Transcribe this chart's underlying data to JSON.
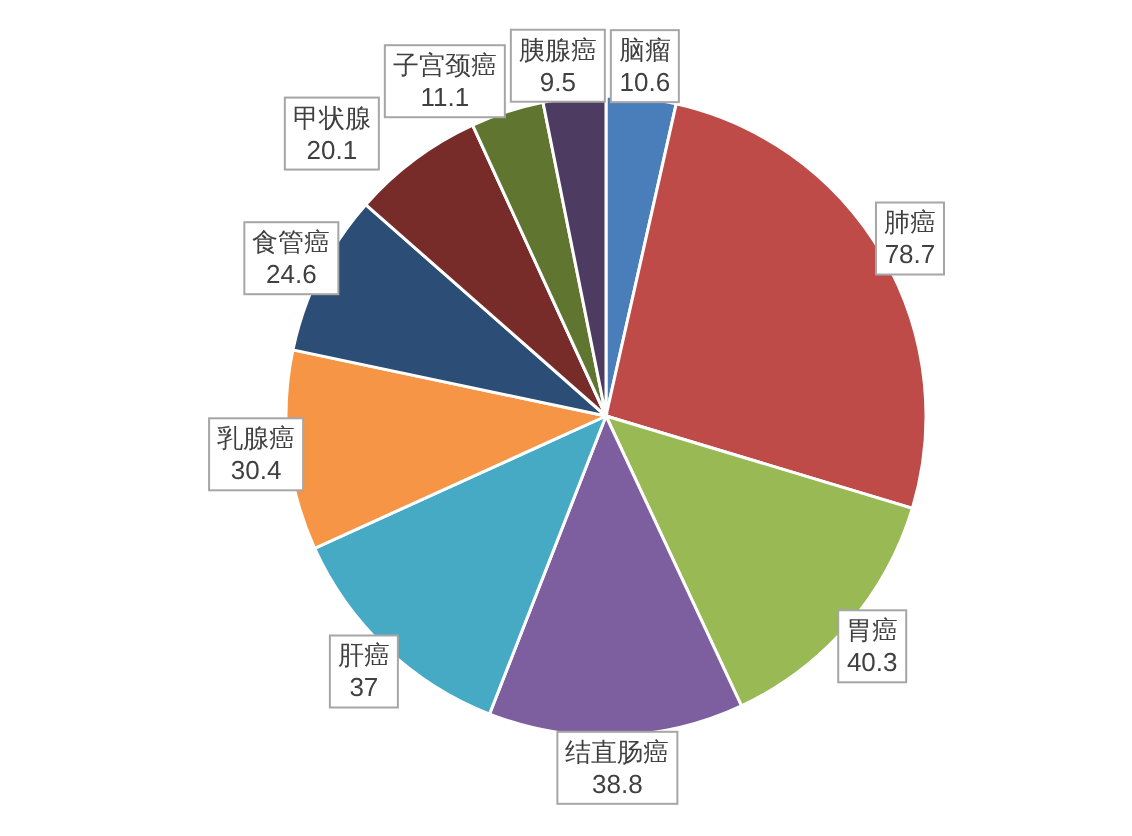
{
  "chart_data": {
    "type": "pie",
    "data_labels": true,
    "categories": [
      "脑瘤",
      "肺癌",
      "胃癌",
      "结直肠癌",
      "肝癌",
      "乳腺癌",
      "食管癌",
      "甲状腺",
      "子宫颈癌",
      "胰腺癌"
    ],
    "values": [
      10.6,
      78.7,
      40.3,
      38.8,
      37,
      30.4,
      24.6,
      20.1,
      11.1,
      9.5
    ],
    "colors": [
      "#4a7ebb",
      "#be4b48",
      "#98b954",
      "#7d5fa0",
      "#46aac5",
      "#f69546",
      "#2c4d75",
      "#772c2a",
      "#5f7530",
      "#4d3b62"
    ]
  }
}
